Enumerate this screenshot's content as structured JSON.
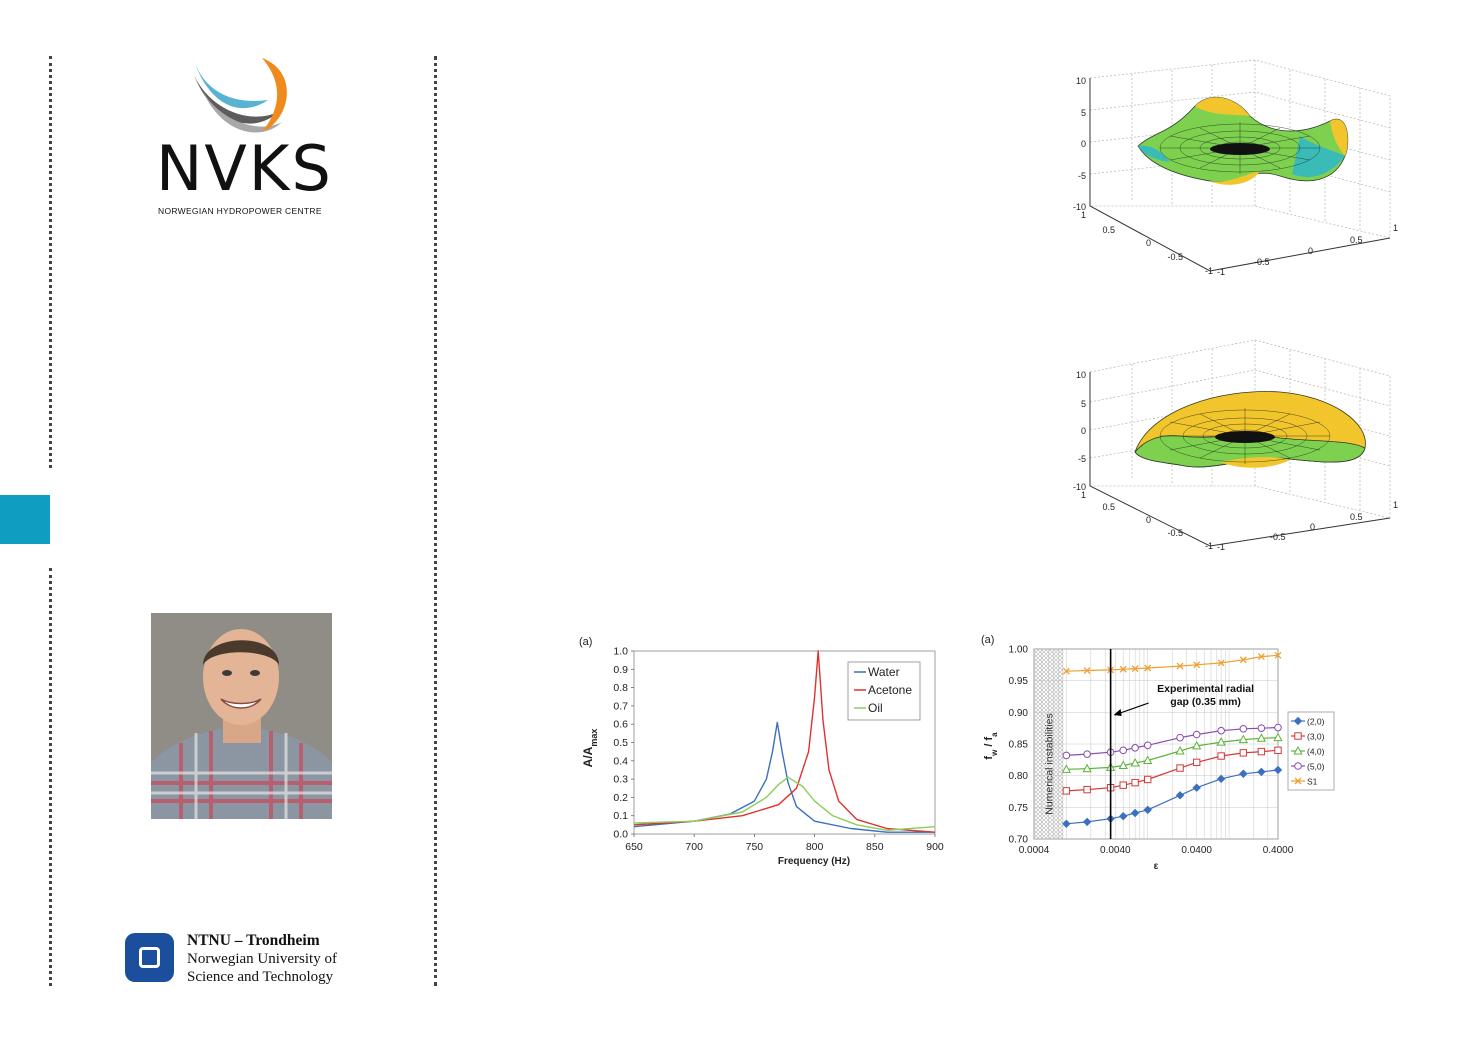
{
  "branding": {
    "logo_word": "NVKS",
    "logo_subtitle": "NORWEGIAN HYDROPOWER CENTRE",
    "ntnu_line1": "NTNU – Trondheim",
    "ntnu_line2": "Norwegian University of",
    "ntnu_line3": "Science and Technology",
    "accent_color": "#0f9dc2"
  },
  "surface_plots": {
    "z_ticks": [
      "10",
      "5",
      "0",
      "-5",
      "-10"
    ],
    "left_ticks": [
      "1",
      "0.5",
      "0",
      "-0.5",
      "-1"
    ],
    "right_ticks": [
      "-1",
      "-0.5",
      "0",
      "0.5",
      "1"
    ]
  },
  "chart_data": [
    {
      "type": "line",
      "panel_label": "(a)",
      "xlabel": "Frequency (Hz)",
      "ylabel_main": "A/A",
      "ylabel_sub": "max",
      "xlim": [
        650,
        900
      ],
      "ylim": [
        0,
        1
      ],
      "x_ticks": [
        "650",
        "700",
        "750",
        "800",
        "850",
        "900"
      ],
      "y_ticks": [
        "0.0",
        "0.1",
        "0.2",
        "0.3",
        "0.4",
        "0.5",
        "0.6",
        "0.7",
        "0.8",
        "0.9",
        "1.0"
      ],
      "legend": "top-right",
      "grid": false,
      "series": [
        {
          "name": "Water",
          "color": "#3b6fbf",
          "x": [
            650,
            700,
            730,
            750,
            760,
            765,
            769,
            773,
            778,
            785,
            800,
            830,
            860,
            900
          ],
          "y": [
            0.04,
            0.07,
            0.11,
            0.18,
            0.3,
            0.45,
            0.61,
            0.45,
            0.28,
            0.15,
            0.07,
            0.03,
            0.01,
            0.01
          ]
        },
        {
          "name": "Acetone",
          "color": "#e0322e",
          "x": [
            650,
            700,
            740,
            770,
            785,
            795,
            800,
            803,
            807,
            812,
            820,
            835,
            860,
            900
          ],
          "y": [
            0.05,
            0.07,
            0.1,
            0.16,
            0.25,
            0.45,
            0.75,
            1.0,
            0.62,
            0.35,
            0.18,
            0.08,
            0.03,
            0.01
          ]
        },
        {
          "name": "Oil",
          "color": "#8bcf5a",
          "x": [
            650,
            700,
            740,
            760,
            770,
            778,
            790,
            800,
            815,
            835,
            860,
            900
          ],
          "y": [
            0.06,
            0.07,
            0.12,
            0.2,
            0.27,
            0.31,
            0.26,
            0.18,
            0.1,
            0.05,
            0.02,
            0.04
          ]
        }
      ]
    },
    {
      "type": "line",
      "panel_label": "(a)",
      "xlabel": "ε",
      "ylabel_main": "f",
      "ylabel_sub1": "w",
      "ylabel_mid": " / f",
      "ylabel_sub2": "a",
      "x_scale": "log",
      "xlim": [
        0.0004,
        0.4
      ],
      "ylim": [
        0.7,
        1.0
      ],
      "x_ticks": [
        "0.0004",
        "0.0040",
        "0.0400",
        "0.4000"
      ],
      "y_ticks": [
        "0.70",
        "0.75",
        "0.80",
        "0.85",
        "0.90",
        "0.95",
        "1.00"
      ],
      "grid": true,
      "legend": "right",
      "annotation_shade": "Numerical instabilities",
      "annotation_line": {
        "x": 0.0035,
        "text_line1": "Experimental radial",
        "text_line2": "gap (0.35 mm)"
      },
      "series": [
        {
          "name": "(2,0)",
          "color": "#3b6fbf",
          "marker": "diamond",
          "x": [
            0.001,
            0.0018,
            0.0035,
            0.005,
            0.007,
            0.01,
            0.025,
            0.04,
            0.08,
            0.15,
            0.25,
            0.4
          ],
          "y": [
            0.724,
            0.727,
            0.732,
            0.736,
            0.741,
            0.746,
            0.769,
            0.781,
            0.795,
            0.803,
            0.806,
            0.809
          ]
        },
        {
          "name": "(3,0)",
          "color": "#d43a3a",
          "marker": "square",
          "x": [
            0.001,
            0.0018,
            0.0035,
            0.005,
            0.007,
            0.01,
            0.025,
            0.04,
            0.08,
            0.15,
            0.25,
            0.4
          ],
          "y": [
            0.776,
            0.778,
            0.781,
            0.785,
            0.789,
            0.794,
            0.812,
            0.821,
            0.831,
            0.836,
            0.838,
            0.84
          ]
        },
        {
          "name": "(4,0)",
          "color": "#5db33a",
          "marker": "triangle",
          "x": [
            0.001,
            0.0018,
            0.0035,
            0.005,
            0.007,
            0.01,
            0.025,
            0.04,
            0.08,
            0.15,
            0.25,
            0.4
          ],
          "y": [
            0.81,
            0.811,
            0.813,
            0.816,
            0.82,
            0.824,
            0.839,
            0.847,
            0.853,
            0.857,
            0.859,
            0.86
          ]
        },
        {
          "name": "(5,0)",
          "color": "#8a4bb0",
          "marker": "circle",
          "x": [
            0.001,
            0.0018,
            0.0035,
            0.005,
            0.007,
            0.01,
            0.025,
            0.04,
            0.08,
            0.15,
            0.25,
            0.4
          ],
          "y": [
            0.832,
            0.834,
            0.837,
            0.84,
            0.844,
            0.848,
            0.86,
            0.865,
            0.871,
            0.874,
            0.875,
            0.876
          ]
        },
        {
          "name": "S1",
          "color": "#f0a030",
          "marker": "x",
          "x": [
            0.001,
            0.0018,
            0.0035,
            0.005,
            0.007,
            0.01,
            0.025,
            0.04,
            0.08,
            0.15,
            0.25,
            0.4
          ],
          "y": [
            0.965,
            0.966,
            0.967,
            0.968,
            0.969,
            0.97,
            0.973,
            0.975,
            0.978,
            0.983,
            0.988,
            0.99
          ]
        }
      ]
    }
  ]
}
